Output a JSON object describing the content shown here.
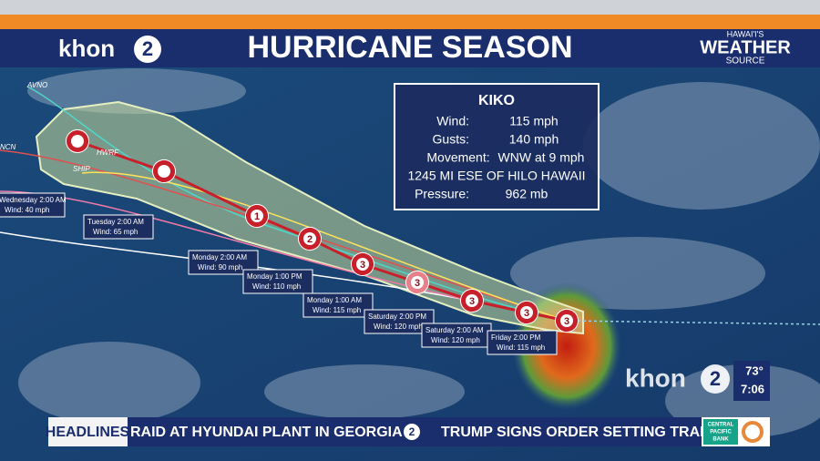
{
  "header": {
    "logo": {
      "word": "khon",
      "number": "2"
    },
    "title": "HURRICANE SEASON",
    "brand": {
      "top": "HAWAI'I'S",
      "main": "WEATHER",
      "bottom": "SOURCE"
    }
  },
  "info_box": {
    "name": "KIKO",
    "rows": [
      [
        "Wind:",
        "115 mph"
      ],
      [
        "Gusts:",
        "140 mph"
      ],
      [
        "Movement:",
        "WNW at 9 mph"
      ]
    ],
    "location": "1245 MI ESE OF HILO HAWAII",
    "pressure": [
      "Pressure:",
      "962 mb"
    ]
  },
  "model_labels": [
    "AVNO",
    "NCN",
    "HWRF",
    "SHIP"
  ],
  "storm_markers": [
    null,
    null,
    1,
    2,
    3,
    3,
    3,
    3,
    3
  ],
  "forecast_labels": [
    {
      "time": "Wednesday 2:00 AM",
      "wind": "Wind: 40 mph"
    },
    {
      "time": "Tuesday 2:00 AM",
      "wind": "Wind: 65 mph"
    },
    {
      "time": "Monday 2:00 AM",
      "wind": "Wind: 90 mph"
    },
    {
      "time": "Monday 1:00 PM",
      "wind": "Wind: 110 mph"
    },
    {
      "time": "Monday 1:00 AM",
      "wind": "Wind: 115 mph"
    },
    {
      "time": "Saturday 2:00 PM",
      "wind": "Wind: 120 mph"
    },
    {
      "time": "Saturday 2:00 AM",
      "wind": "Wind: 120 mph"
    },
    {
      "time": "Friday 2:00 PM",
      "wind": "Wind: 115 mph"
    }
  ],
  "bug": {
    "logo": {
      "word": "khon",
      "number": "2"
    },
    "temperature": "73°",
    "time": "7:06"
  },
  "ticker": {
    "label": "HEADLINES",
    "items": [
      "RAID AT HYUNDAI PLANT IN GEORGIA",
      "TRUMP SIGNS ORDER SETTING TRADE"
    ],
    "sponsor": [
      "CENTRAL",
      "PACIFIC",
      "BANK"
    ]
  }
}
